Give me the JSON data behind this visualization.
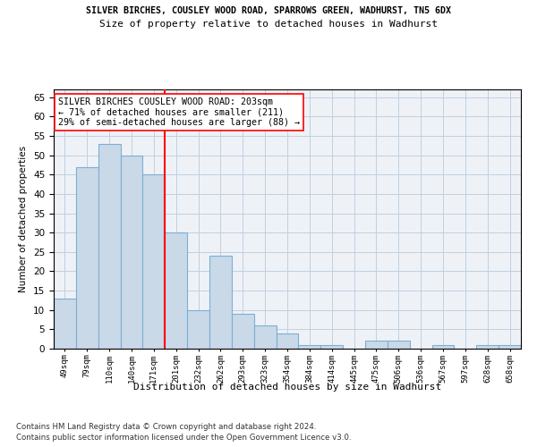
{
  "title1": "SILVER BIRCHES, COUSLEY WOOD ROAD, SPARROWS GREEN, WADHURST, TN5 6DX",
  "title2": "Size of property relative to detached houses in Wadhurst",
  "xlabel": "Distribution of detached houses by size in Wadhurst",
  "ylabel": "Number of detached properties",
  "categories": [
    "49sqm",
    "79sqm",
    "110sqm",
    "140sqm",
    "171sqm",
    "201sqm",
    "232sqm",
    "262sqm",
    "293sqm",
    "323sqm",
    "354sqm",
    "384sqm",
    "414sqm",
    "445sqm",
    "475sqm",
    "506sqm",
    "536sqm",
    "567sqm",
    "597sqm",
    "628sqm",
    "658sqm"
  ],
  "values": [
    13,
    47,
    53,
    50,
    45,
    30,
    10,
    24,
    9,
    6,
    4,
    1,
    1,
    0,
    2,
    2,
    0,
    1,
    0,
    1,
    1
  ],
  "bar_color": "#c9d9e8",
  "bar_edge_color": "#7bafd4",
  "annotation_text": "SILVER BIRCHES COUSLEY WOOD ROAD: 203sqm\n← 71% of detached houses are smaller (211)\n29% of semi-detached houses are larger (88) →",
  "ylim": [
    0,
    67
  ],
  "yticks": [
    0,
    5,
    10,
    15,
    20,
    25,
    30,
    35,
    40,
    45,
    50,
    55,
    60,
    65
  ],
  "footer1": "Contains HM Land Registry data © Crown copyright and database right 2024.",
  "footer2": "Contains public sector information licensed under the Open Government Licence v3.0.",
  "plot_bg_color": "#eef2f7"
}
